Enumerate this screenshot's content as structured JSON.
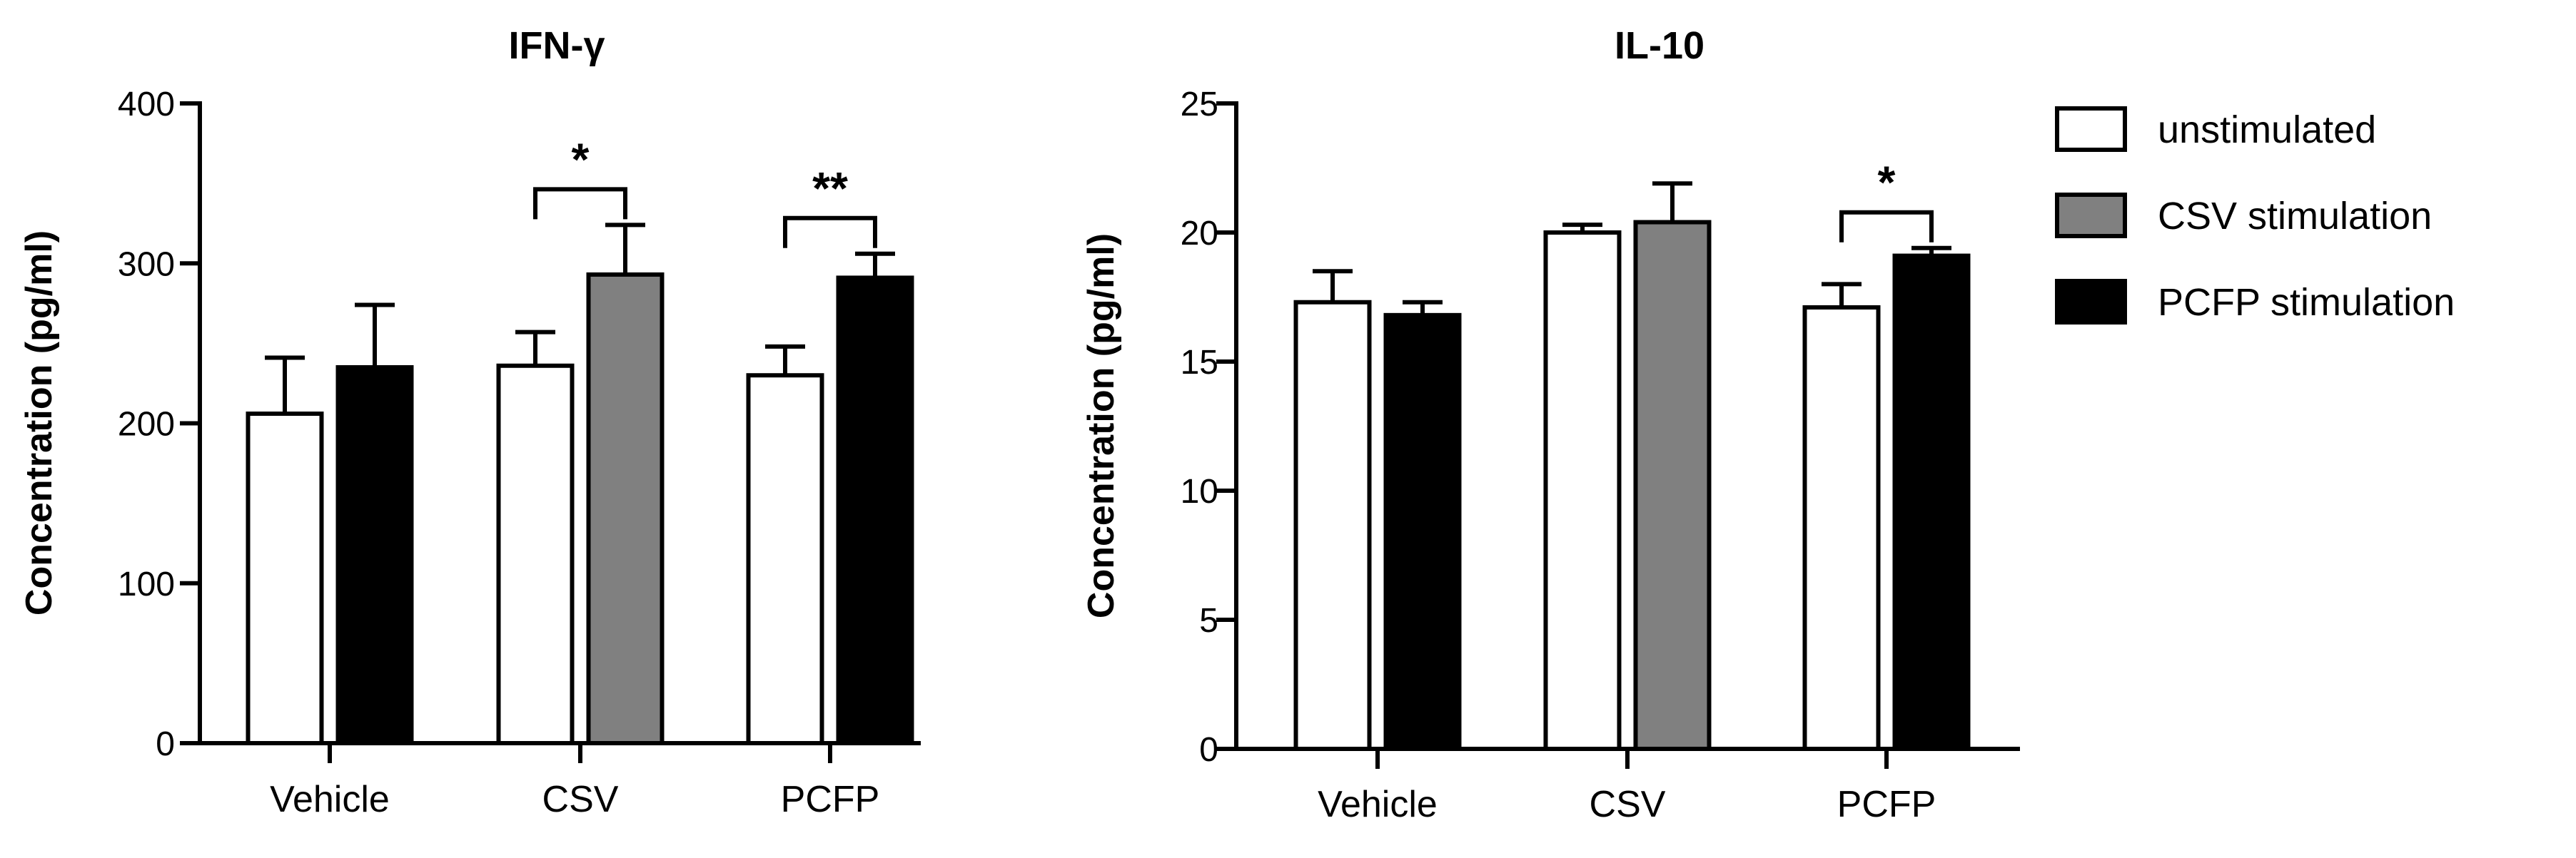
{
  "chart_data": [
    {
      "type": "bar",
      "title": "IFN-γ",
      "xlabel": "",
      "ylabel": "Concentration (pg/ml)",
      "ylim": [
        0,
        400
      ],
      "yticks": [
        0,
        100,
        200,
        300,
        400
      ],
      "categories": [
        "Vehicle",
        "CSV",
        "PCFP"
      ],
      "groups": [
        {
          "category": "Vehicle",
          "bars": [
            {
              "series": "unstimulated",
              "value": 206,
              "error": 35
            },
            {
              "series": "PCFP stimulation",
              "value": 235,
              "error": 39
            }
          ]
        },
        {
          "category": "CSV",
          "bars": [
            {
              "series": "unstimulated",
              "value": 236,
              "error": 21
            },
            {
              "series": "CSV stimulation",
              "value": 293,
              "error": 31
            }
          ]
        },
        {
          "category": "PCFP",
          "bars": [
            {
              "series": "unstimulated",
              "value": 230,
              "error": 18
            },
            {
              "series": "PCFP stimulation",
              "value": 291,
              "error": 15
            }
          ]
        }
      ],
      "significance": [
        {
          "category": "CSV",
          "label": "*"
        },
        {
          "category": "PCFP",
          "label": "**"
        }
      ]
    },
    {
      "type": "bar",
      "title": "IL-10",
      "xlabel": "",
      "ylabel": "Concentration (pg/ml)",
      "ylim": [
        0,
        25
      ],
      "yticks": [
        0,
        5,
        10,
        15,
        20,
        25
      ],
      "categories": [
        "Vehicle",
        "CSV",
        "PCFP"
      ],
      "groups": [
        {
          "category": "Vehicle",
          "bars": [
            {
              "series": "unstimulated",
              "value": 17.3,
              "error": 1.2
            },
            {
              "series": "PCFP stimulation",
              "value": 16.8,
              "error": 0.5
            }
          ]
        },
        {
          "category": "CSV",
          "bars": [
            {
              "series": "unstimulated",
              "value": 20.0,
              "error": 0.3
            },
            {
              "series": "CSV stimulation",
              "value": 20.4,
              "error": 1.5
            }
          ]
        },
        {
          "category": "PCFP",
          "bars": [
            {
              "series": "unstimulated",
              "value": 17.1,
              "error": 0.9
            },
            {
              "series": "PCFP stimulation",
              "value": 19.1,
              "error": 0.3
            }
          ]
        }
      ],
      "significance": [
        {
          "category": "PCFP",
          "label": "*"
        }
      ]
    }
  ],
  "legend": {
    "placement": "right",
    "entries": [
      {
        "series": "unstimulated",
        "label": "unstimulated",
        "color": "#ffffff"
      },
      {
        "series": "CSV stimulation",
        "label": "CSV stimulation",
        "color": "#808080"
      },
      {
        "series": "PCFP stimulation",
        "label": "PCFP stimulation",
        "color": "#000000"
      }
    ]
  },
  "colors": {
    "unstimulated": "#ffffff",
    "CSV stimulation": "#808080",
    "PCFP stimulation": "#000000",
    "axis": "#000000"
  }
}
